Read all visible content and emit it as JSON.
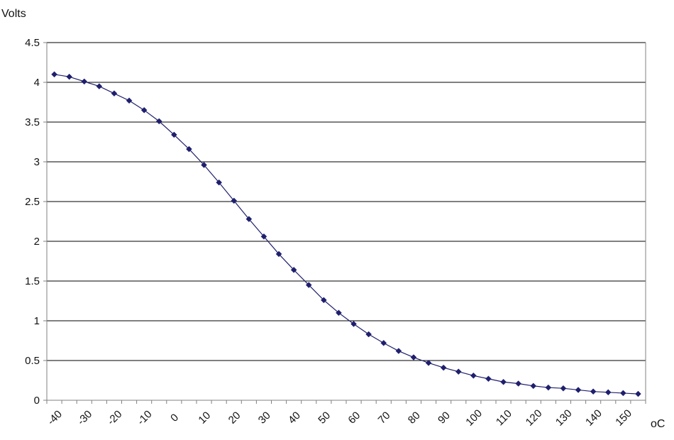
{
  "chart_data": {
    "type": "line",
    "title": "",
    "ylabel": "Volts",
    "xlabel": "oC",
    "ylim": [
      0,
      4.5
    ],
    "yticks": [
      0,
      0.5,
      1,
      1.5,
      2,
      2.5,
      3,
      3.5,
      4,
      4.5
    ],
    "ytick_labels": [
      "0",
      "0.5",
      "1",
      "1.5",
      "2",
      "2.5",
      "3",
      "3.5",
      "4",
      "4.5"
    ],
    "xtick_labels": [
      "-40",
      "-30",
      "-20",
      "-10",
      "0",
      "10",
      "20",
      "30",
      "40",
      "50",
      "60",
      "70",
      "80",
      "90",
      "100",
      "110",
      "120",
      "130",
      "140",
      "150"
    ],
    "grid": "horizontal",
    "x": [
      -40,
      -35,
      -30,
      -25,
      -20,
      -15,
      -10,
      -5,
      0,
      5,
      10,
      15,
      20,
      25,
      30,
      35,
      40,
      45,
      50,
      55,
      60,
      65,
      70,
      75,
      80,
      85,
      90,
      95,
      100,
      105,
      110,
      115,
      120,
      125,
      130,
      135,
      140,
      145,
      150,
      155
    ],
    "series": [
      {
        "values": [
          4.1,
          4.07,
          4.01,
          3.95,
          3.86,
          3.77,
          3.65,
          3.51,
          3.34,
          3.16,
          2.96,
          2.74,
          2.51,
          2.28,
          2.06,
          1.84,
          1.64,
          1.45,
          1.26,
          1.1,
          0.96,
          0.83,
          0.72,
          0.62,
          0.54,
          0.47,
          0.41,
          0.36,
          0.31,
          0.27,
          0.23,
          0.21,
          0.18,
          0.16,
          0.15,
          0.13,
          0.11,
          0.1,
          0.09,
          0.08
        ],
        "color": "#1f1f6e"
      }
    ],
    "colors": {
      "line": "#1f1f6e",
      "marker": "#1f1f6e",
      "grid": "#000000",
      "axis": "#808080"
    }
  }
}
